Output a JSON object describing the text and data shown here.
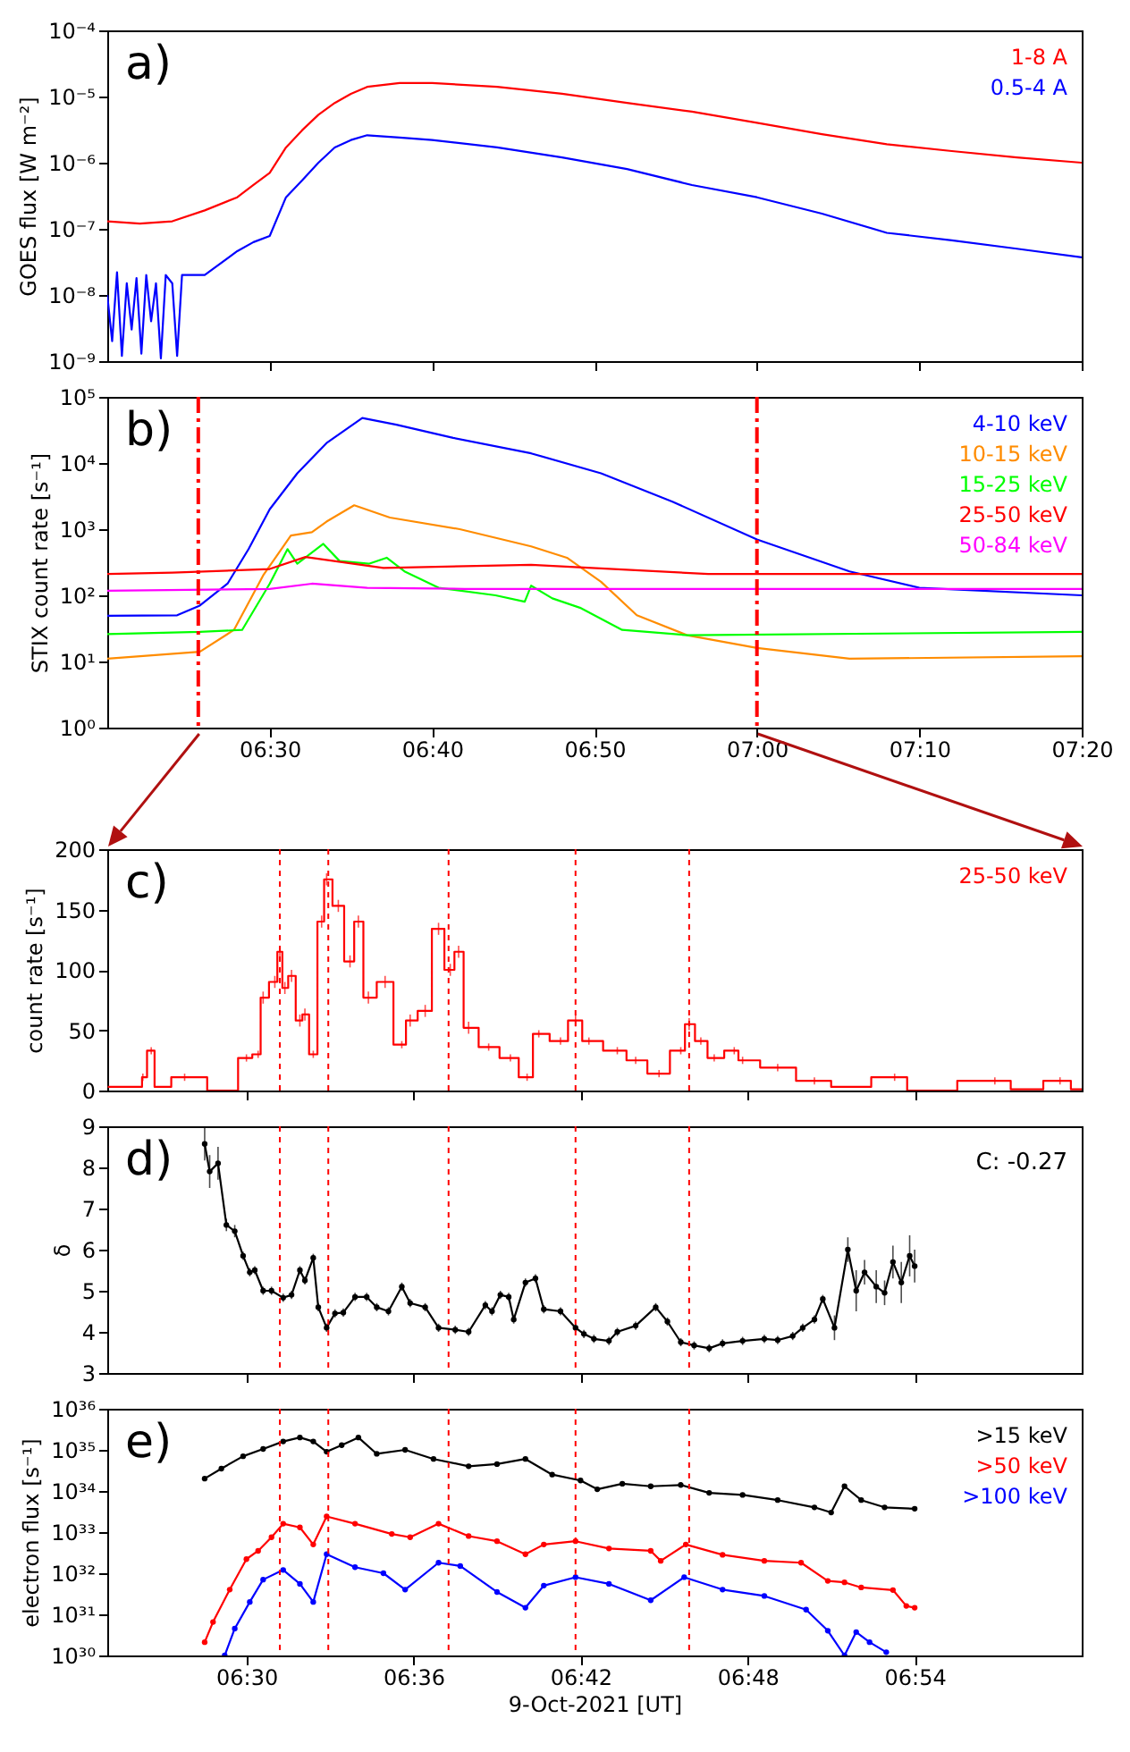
{
  "chart_data": [
    {
      "type": "line",
      "title": "a)",
      "ylabel": "GOES flux [W m⁻²]",
      "xlim": [
        6.3333,
        7.3333
      ],
      "xticks": [
        {
          "value": 6.5,
          "label": null
        },
        {
          "value": 6.6667,
          "label": null
        },
        {
          "value": 6.8333,
          "label": null
        },
        {
          "value": 7.0,
          "label": null
        },
        {
          "value": 7.1667,
          "label": null
        },
        {
          "value": 7.3333,
          "label": null
        }
      ],
      "ylim": [
        1e-09,
        0.0001
      ],
      "yticks": [
        {
          "value": 1e-09,
          "label": "10⁻⁹"
        },
        {
          "value": 1e-08,
          "label": "10⁻⁸"
        },
        {
          "value": 1e-07,
          "label": "10⁻⁷"
        },
        {
          "value": 1e-06,
          "label": "10⁻⁶"
        },
        {
          "value": 1e-05,
          "label": "10⁻⁵"
        },
        {
          "value": 0.0001,
          "label": "10⁻⁴"
        }
      ],
      "log": true,
      "legend": "top right",
      "tick_labels": "y",
      "series": [
        {
          "name": "1-8 A",
          "color": "#ff0000",
          "x": [
            6.3333,
            6.3667,
            6.4,
            6.4333,
            6.4667,
            6.4833,
            6.5,
            6.5167,
            6.5333,
            6.55,
            6.5667,
            6.5833,
            6.6,
            6.6333,
            6.6667,
            6.7333,
            6.8,
            6.8667,
            6.9333,
            7.0,
            7.0667,
            7.1333,
            7.2,
            7.2667,
            7.3333
          ],
          "values": [
            1.3e-07,
            1.2e-07,
            1.3e-07,
            1.9e-07,
            3e-07,
            4.6e-07,
            7e-07,
            1.7e-06,
            3.1e-06,
            5.3e-06,
            8e-06,
            1.1e-05,
            1.4e-05,
            1.6e-05,
            1.6e-05,
            1.4e-05,
            1.1e-05,
            8e-06,
            5.9e-06,
            4e-06,
            2.7e-06,
            1.9e-06,
            1.5e-06,
            1.2e-06,
            1e-06
          ]
        },
        {
          "name": "0.5-4 A",
          "color": "#0000ff",
          "x": [
            6.3333,
            6.3383,
            6.3433,
            6.3483,
            6.3533,
            6.3583,
            6.3633,
            6.3683,
            6.3733,
            6.3783,
            6.3833,
            6.3883,
            6.3933,
            6.4,
            6.405,
            6.41,
            6.4333,
            6.4667,
            6.4833,
            6.5,
            6.5167,
            6.5333,
            6.55,
            6.5667,
            6.5833,
            6.6,
            6.6333,
            6.6667,
            6.7333,
            6.8,
            6.8667,
            6.9333,
            7.0,
            7.0667,
            7.1333,
            7.2,
            7.2667,
            7.3333
          ],
          "values": [
            1e-08,
            2e-09,
            2.2e-08,
            1.2e-09,
            1.5e-08,
            3e-09,
            1.8e-08,
            1.3e-09,
            2e-08,
            4e-09,
            1.5e-08,
            1.1e-09,
            2e-08,
            1.5e-08,
            1.2e-09,
            2e-08,
            2e-08,
            4.6e-08,
            6.3e-08,
            7.8e-08,
            3e-07,
            5.4e-07,
            1e-06,
            1.7e-06,
            2.2e-06,
            2.6e-06,
            2.4e-06,
            2.2e-06,
            1.7e-06,
            1.2e-06,
            8e-07,
            4.6e-07,
            3e-07,
            1.7e-07,
            8.7e-08,
            6.7e-08,
            5e-08,
            3.7e-08
          ]
        }
      ]
    },
    {
      "type": "line",
      "title": "b)",
      "ylabel": "STIX count rate [s⁻¹]",
      "xlim": [
        6.3333,
        7.3333
      ],
      "xticks": [
        {
          "value": 6.5,
          "label": "06:30"
        },
        {
          "value": 6.6667,
          "label": "06:40"
        },
        {
          "value": 6.8333,
          "label": "06:50"
        },
        {
          "value": 7.0,
          "label": "07:00"
        },
        {
          "value": 7.1667,
          "label": "07:10"
        },
        {
          "value": 7.3333,
          "label": "07:20"
        }
      ],
      "ylim": [
        1,
        100000
      ],
      "yticks": [
        {
          "value": 1,
          "label": "10⁰"
        },
        {
          "value": 10,
          "label": "10¹"
        },
        {
          "value": 100,
          "label": "10²"
        },
        {
          "value": 1000,
          "label": "10³"
        },
        {
          "value": 10000,
          "label": "10⁴"
        },
        {
          "value": 100000,
          "label": "10⁵"
        }
      ],
      "log": true,
      "legend": "top right",
      "ref_lines": [
        {
          "axis": "x",
          "value": 6.4267,
          "color": "#ff0000",
          "line_style": "dashed"
        },
        {
          "axis": "x",
          "value": 7.0,
          "color": "#ff0000",
          "line_style": "dashed"
        }
      ],
      "series": [
        {
          "name": "4-10 keV",
          "color": "#0000ff",
          "x": [
            6.3333,
            6.405,
            6.4283,
            6.4567,
            6.4783,
            6.5,
            6.5283,
            6.5583,
            6.595,
            6.63,
            6.6883,
            6.7683,
            6.84,
            6.9133,
            7.0,
            7.095,
            7.1667,
            7.3333
          ],
          "values": [
            49,
            50,
            70,
            150,
            500,
            2000,
            7000,
            20000,
            48000,
            38000,
            24000,
            14000,
            7000,
            2600,
            700,
            230,
            130,
            100
          ]
        },
        {
          "name": "10-15 keV",
          "color": "#ff8c00",
          "x": [
            6.3333,
            6.4283,
            6.4633,
            6.4933,
            6.5217,
            6.5433,
            6.5583,
            6.5867,
            6.6233,
            6.695,
            6.7683,
            6.805,
            6.84,
            6.8767,
            6.9283,
            7.0,
            7.095,
            7.3333
          ],
          "values": [
            11,
            14,
            30,
            200,
            800,
            900,
            1300,
            2300,
            1500,
            1000,
            550,
            370,
            160,
            50,
            25,
            16,
            11,
            12
          ]
        },
        {
          "name": "15-25 keV",
          "color": "#00ff00",
          "x": [
            6.3333,
            6.4283,
            6.4717,
            6.5,
            6.5183,
            6.5283,
            6.555,
            6.5717,
            6.6017,
            6.62,
            6.6383,
            6.6733,
            6.7317,
            6.7617,
            6.7683,
            6.79,
            6.8183,
            6.8617,
            6.9283,
            7.3333
          ],
          "values": [
            26,
            28,
            30,
            150,
            500,
            300,
            600,
            330,
            300,
            370,
            230,
            130,
            100,
            80,
            140,
            90,
            65,
            30,
            25,
            28
          ]
        },
        {
          "name": "25-50 keV",
          "color": "#ff0000",
          "x": [
            6.3333,
            6.4,
            6.5,
            6.5367,
            6.6167,
            6.7683,
            6.95,
            7.3333
          ],
          "values": [
            210,
            220,
            250,
            380,
            260,
            290,
            210,
            210
          ]
        },
        {
          "name": "50-84 keV",
          "color": "#ff00ff",
          "x": [
            6.3333,
            6.5,
            6.5433,
            6.6,
            6.7,
            7.3333
          ],
          "values": [
            117,
            125,
            150,
            130,
            125,
            125
          ]
        }
      ]
    },
    {
      "type": "step",
      "title": "c)",
      "ylabel": "count rate [s⁻¹]",
      "xlim": [
        6.4167,
        7.0
      ],
      "xticks": [
        {
          "value": 6.5,
          "label": null
        },
        {
          "value": 6.6,
          "label": null
        },
        {
          "value": 6.7,
          "label": null
        },
        {
          "value": 6.8,
          "label": null
        },
        {
          "value": 6.9,
          "label": null
        }
      ],
      "ylim": [
        0,
        200
      ],
      "yticks": [
        0,
        50,
        100,
        150,
        200
      ],
      "legend": "top right",
      "tick_labels": "y",
      "ref_lines": [
        {
          "axis": "x",
          "value": 6.52,
          "color": "#ff0000",
          "line_style": "dotted"
        },
        {
          "axis": "x",
          "value": 6.549,
          "color": "#ff0000",
          "line_style": "dotted"
        },
        {
          "axis": "x",
          "value": 6.621,
          "color": "#ff0000",
          "line_style": "dotted"
        },
        {
          "axis": "x",
          "value": 6.697,
          "color": "#ff0000",
          "line_style": "dotted"
        },
        {
          "axis": "x",
          "value": 6.765,
          "color": "#ff0000",
          "line_style": "dotted"
        }
      ],
      "series": [
        {
          "name": "25-50 keV",
          "color": "#ff0000",
          "x": [
            6.417,
            6.437,
            6.438,
            6.443,
            6.447,
            6.463,
            6.49,
            6.5,
            6.507,
            6.51,
            6.517,
            6.52,
            6.523,
            6.527,
            6.532,
            6.535,
            6.54,
            6.545,
            6.548,
            6.555,
            6.562,
            6.567,
            6.573,
            6.583,
            6.593,
            6.598,
            6.607,
            6.615,
            6.622,
            6.627,
            6.633,
            6.645,
            6.658,
            6.668,
            6.675,
            6.688,
            6.697,
            6.705,
            6.722,
            6.733,
            6.747,
            6.76,
            6.765,
            6.772,
            6.78,
            6.792,
            6.797,
            6.818,
            6.84,
            6.86,
            6.888,
            6.903,
            6.948,
            6.967,
            6.987,
            7.0
          ],
          "values": [
            3,
            3,
            11,
            33,
            3,
            11,
            0,
            27,
            30,
            77,
            90,
            115,
            85,
            95,
            58,
            63,
            30,
            140,
            175,
            153,
            107,
            140,
            77,
            90,
            38,
            58,
            66,
            134,
            100,
            115,
            52,
            36,
            27,
            11,
            47,
            41,
            58,
            41,
            33,
            25,
            14,
            33,
            55,
            41,
            27,
            33,
            25,
            19,
            8,
            3,
            11,
            0,
            8,
            1,
            8,
            1
          ],
          "errors": [
            null,
            null,
            3,
            3,
            null,
            3,
            null,
            3,
            3,
            5,
            5,
            5,
            5,
            5,
            5,
            5,
            3,
            5,
            5,
            5,
            5,
            5,
            5,
            5,
            3,
            5,
            5,
            5,
            5,
            5,
            5,
            3,
            3,
            3,
            3,
            3,
            5,
            3,
            3,
            3,
            3,
            3,
            5,
            3,
            3,
            3,
            3,
            3,
            3,
            null,
            3,
            null,
            3,
            null,
            3,
            null
          ]
        }
      ]
    },
    {
      "type": "line",
      "title": "d)",
      "ylabel": "δ",
      "xlim": [
        6.4167,
        7.0
      ],
      "xticks": [
        {
          "value": 6.5,
          "label": null
        },
        {
          "value": 6.6,
          "label": null
        },
        {
          "value": 6.7,
          "label": null
        },
        {
          "value": 6.8,
          "label": null
        },
        {
          "value": 6.9,
          "label": null
        }
      ],
      "ylim": [
        3,
        9
      ],
      "yticks": [
        3,
        4,
        5,
        6,
        7,
        8,
        9
      ],
      "marker": "circle",
      "tick_labels": "y",
      "annotations": [
        "C: -0.27"
      ],
      "ref_lines": [
        {
          "axis": "x",
          "value": 6.52,
          "color": "#ff0000",
          "line_style": "dotted"
        },
        {
          "axis": "x",
          "value": 6.549,
          "color": "#ff0000",
          "line_style": "dotted"
        },
        {
          "axis": "x",
          "value": 6.621,
          "color": "#ff0000",
          "line_style": "dotted"
        },
        {
          "axis": "x",
          "value": 6.697,
          "color": "#ff0000",
          "line_style": "dotted"
        },
        {
          "axis": "x",
          "value": 6.765,
          "color": "#ff0000",
          "line_style": "dotted"
        }
      ],
      "series": [
        {
          "color": "#000000",
          "x": [
            6.475,
            6.478,
            6.483,
            6.488,
            6.493,
            6.498,
            6.502,
            6.505,
            6.51,
            6.515,
            6.522,
            6.527,
            6.532,
            6.535,
            6.54,
            6.543,
            6.548,
            6.553,
            6.558,
            6.565,
            6.572,
            6.578,
            6.585,
            6.593,
            6.598,
            6.607,
            6.615,
            6.625,
            6.633,
            6.643,
            6.647,
            6.652,
            6.657,
            6.66,
            6.667,
            6.673,
            6.678,
            6.688,
            6.697,
            6.702,
            6.708,
            6.717,
            6.722,
            6.733,
            6.745,
            6.752,
            6.76,
            6.768,
            6.777,
            6.785,
            6.797,
            6.81,
            6.818,
            6.827,
            6.833,
            6.84,
            6.845,
            6.852,
            6.86,
            6.865,
            6.87,
            6.877,
            6.882,
            6.887,
            6.892,
            6.897,
            6.9
          ],
          "values": [
            8.57,
            7.9,
            8.1,
            6.6,
            6.45,
            5.85,
            5.45,
            5.5,
            5.0,
            5.0,
            4.83,
            4.9,
            5.5,
            5.25,
            5.8,
            4.6,
            4.1,
            4.45,
            4.47,
            4.85,
            4.85,
            4.6,
            4.5,
            5.1,
            4.7,
            4.6,
            4.1,
            4.05,
            4.0,
            4.65,
            4.5,
            4.9,
            4.85,
            4.3,
            5.2,
            5.3,
            4.55,
            4.5,
            4.1,
            3.95,
            3.83,
            3.78,
            4.0,
            4.15,
            4.6,
            4.25,
            3.75,
            3.67,
            3.6,
            3.72,
            3.78,
            3.83,
            3.8,
            3.9,
            4.1,
            4.3,
            4.8,
            4.1,
            6.0,
            5.0,
            5.45,
            5.1,
            4.95,
            5.7,
            5.2,
            5.85,
            5.6
          ],
          "errors": [
            0.4,
            0.4,
            0.4,
            0.15,
            0.15,
            0.1,
            0.1,
            0.1,
            0.1,
            0.1,
            0.1,
            0.1,
            0.1,
            0.1,
            0.1,
            0.1,
            0.1,
            0.1,
            0.1,
            0.1,
            0.1,
            0.1,
            0.1,
            0.1,
            0.1,
            0.1,
            0.1,
            0.1,
            0.1,
            0.1,
            0.1,
            0.1,
            0.1,
            0.1,
            0.1,
            0.1,
            0.1,
            0.1,
            0.1,
            0.1,
            0.1,
            0.1,
            0.1,
            0.1,
            0.1,
            0.1,
            0.1,
            0.1,
            0.1,
            0.1,
            0.1,
            0.1,
            0.1,
            0.1,
            0.1,
            0.1,
            0.1,
            0.3,
            0.3,
            0.5,
            0.3,
            0.4,
            0.3,
            0.4,
            0.5,
            0.5,
            0.4
          ]
        }
      ]
    },
    {
      "type": "line",
      "title": "e)",
      "xlabel": "9-Oct-2021 [UT]",
      "ylabel": "electron flux [s⁻¹]",
      "xlim": [
        6.4167,
        7.0
      ],
      "xticks": [
        {
          "value": 6.5,
          "label": "06:30"
        },
        {
          "value": 6.6,
          "label": "06:36"
        },
        {
          "value": 6.7,
          "label": "06:42"
        },
        {
          "value": 6.8,
          "label": "06:48"
        },
        {
          "value": 6.9,
          "label": "06:54"
        }
      ],
      "ylim": [
        1e+30,
        1e+36
      ],
      "yticks": [
        {
          "value": 1e+30,
          "label": "10³⁰"
        },
        {
          "value": 1e+31,
          "label": "10³¹"
        },
        {
          "value": 1e+32,
          "label": "10³²"
        },
        {
          "value": 1e+33,
          "label": "10³³"
        },
        {
          "value": 1e+34,
          "label": "10³⁴"
        },
        {
          "value": 1e+35,
          "label": "10³⁵"
        },
        {
          "value": 1e+36,
          "label": "10³⁶"
        }
      ],
      "log": true,
      "marker": "circle",
      "legend": "top right",
      "ref_lines": [
        {
          "axis": "x",
          "value": 6.52,
          "color": "#ff0000",
          "line_style": "dotted"
        },
        {
          "axis": "x",
          "value": 6.549,
          "color": "#ff0000",
          "line_style": "dotted"
        },
        {
          "axis": "x",
          "value": 6.621,
          "color": "#ff0000",
          "line_style": "dotted"
        },
        {
          "axis": "x",
          "value": 6.697,
          "color": "#ff0000",
          "line_style": "dotted"
        },
        {
          "axis": "x",
          "value": 6.765,
          "color": "#ff0000",
          "line_style": "dotted"
        }
      ],
      "series": [
        {
          "name": ">15 keV",
          "color": "#000000",
          "x": [
            6.475,
            6.485,
            6.498,
            6.51,
            6.522,
            6.532,
            6.54,
            6.548,
            6.557,
            6.567,
            6.578,
            6.595,
            6.612,
            6.633,
            6.65,
            6.667,
            6.683,
            6.7,
            6.71,
            6.725,
            6.742,
            6.76,
            6.777,
            6.797,
            6.818,
            6.84,
            6.85,
            6.858,
            6.868,
            6.882,
            6.9
          ],
          "values": [
            2e+34,
            3.5e+34,
            7e+34,
            1.05e+35,
            1.6e+35,
            2e+35,
            1.6e+35,
            9e+34,
            1.3e+35,
            2e+35,
            8e+34,
            1e+35,
            6e+34,
            4e+34,
            4.5e+34,
            6e+34,
            2.5e+34,
            1.8e+34,
            1.1e+34,
            1.5e+34,
            1.3e+34,
            1.4e+34,
            9e+33,
            8e+33,
            6e+33,
            4e+33,
            3e+33,
            1.3e+34,
            6e+33,
            4e+33,
            3.7e+33
          ]
        },
        {
          "name": ">50 keV",
          "color": "#ff0000",
          "x": [
            6.475,
            6.48,
            6.49,
            6.5,
            6.507,
            6.515,
            6.522,
            6.532,
            6.54,
            6.548,
            6.565,
            6.587,
            6.598,
            6.615,
            6.633,
            6.65,
            6.667,
            6.678,
            6.697,
            6.717,
            6.742,
            6.748,
            6.763,
            6.785,
            6.81,
            6.832,
            6.848,
            6.858,
            6.868,
            6.887,
            6.895,
            6.9
          ],
          "values": [
            2.1e+30,
            6.5e+30,
            4e+31,
            2.2e+32,
            3.5e+32,
            7.5e+32,
            1.6e+33,
            1.3e+33,
            5e+32,
            2.4e+33,
            1.6e+33,
            9e+32,
            7.5e+32,
            1.6e+33,
            8e+32,
            6e+32,
            2.9e+32,
            5e+32,
            6e+32,
            4e+32,
            3.5e+32,
            2e+32,
            5e+32,
            2.8e+32,
            2e+32,
            1.8e+32,
            6.5e+31,
            6e+31,
            4.5e+31,
            3.9e+31,
            1.6e+31,
            1.45e+31
          ]
        },
        {
          "name": ">100 keV",
          "color": "#0000ff",
          "x": [
            6.487,
            6.493,
            6.502,
            6.51,
            6.522,
            6.532,
            6.54,
            6.548,
            6.565,
            6.582,
            6.595,
            6.615,
            6.628,
            6.65,
            6.667,
            6.678,
            6.697,
            6.717,
            6.742,
            6.762,
            6.785,
            6.81,
            6.835,
            6.848,
            6.858,
            6.865,
            6.873,
            6.883
          ],
          "values": [
            1e+30,
            4.5e+30,
            2e+31,
            7e+31,
            1.2e+32,
            5.5e+31,
            2e+31,
            2.9e+32,
            1.4e+32,
            1e+32,
            4e+31,
            1.8e+32,
            1.5e+32,
            3.5e+31,
            1.45e+31,
            5e+31,
            8e+31,
            5.5e+31,
            2.2e+31,
            8e+31,
            4e+31,
            2.8e+31,
            1.3e+31,
            4e+30,
            1e+30,
            3.7e+30,
            2.1e+30,
            1.2e+30
          ]
        }
      ]
    }
  ]
}
